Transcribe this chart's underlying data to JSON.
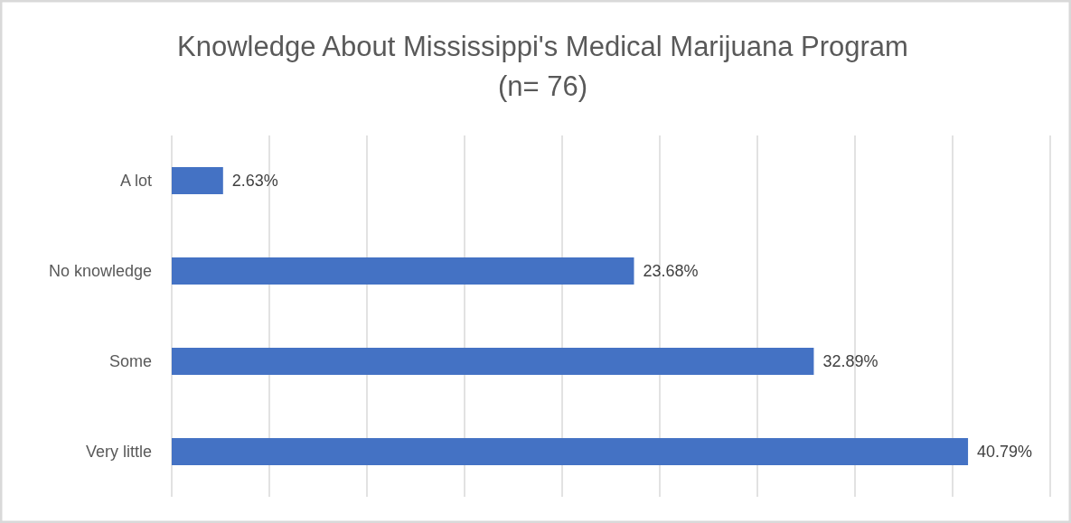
{
  "chart_data": {
    "type": "bar",
    "orientation": "horizontal",
    "title": "Knowledge About Mississippi's Medical Marijuana Program\n(n= 76)",
    "categories": [
      "A lot",
      "No knowledge",
      "Some",
      "Very little"
    ],
    "values": [
      2.63,
      23.68,
      32.89,
      40.79
    ],
    "color": "#4472c4",
    "value_labels": [
      "2.63%",
      "23.68%",
      "32.89%",
      "40.79%"
    ],
    "xlim": [
      0,
      45
    ],
    "xticks": [
      {
        "value": 0,
        "label": null
      },
      {
        "value": 5,
        "label": null
      },
      {
        "value": 10,
        "label": null
      },
      {
        "value": 15,
        "label": null
      },
      {
        "value": 20,
        "label": null
      },
      {
        "value": 25,
        "label": null
      },
      {
        "value": 30,
        "label": null
      },
      {
        "value": 35,
        "label": null
      },
      {
        "value": 40,
        "label": null
      },
      {
        "value": 45,
        "label": null
      }
    ],
    "grid": "x",
    "tick_labels": "y"
  }
}
